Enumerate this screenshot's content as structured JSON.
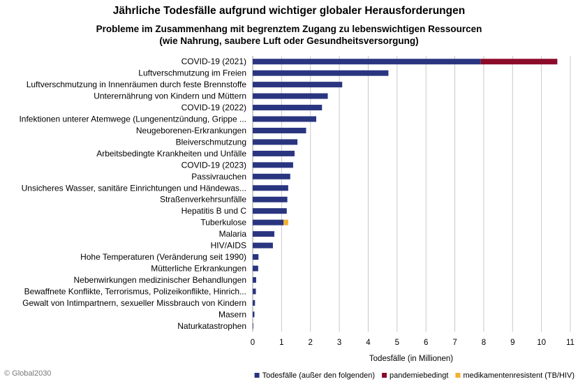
{
  "chart_data": {
    "type": "bar",
    "orientation": "horizontal",
    "stacked": true,
    "title": "Jährliche Todesfälle aufgrund wichtiger globaler Herausforderungen",
    "subtitle": [
      "Probleme im Zusammenhang mit begrenztem Zugang zu lebenswichtigen Ressourcen",
      "(wie Nahrung, saubere Luft oder Gesundheitsversorgung)"
    ],
    "xlabel": "Todesfälle (in Millionen)",
    "ylabel": "",
    "xlim": [
      0,
      11
    ],
    "xticks": [
      "0",
      "1",
      "2",
      "3",
      "4",
      "5",
      "6",
      "7",
      "8",
      "9",
      "10",
      "11"
    ],
    "grid": "vertical",
    "legend_position": "bottom-right",
    "categories": [
      "COVID-19 (2021)",
      "Luftverschmutzung im Freien",
      "Luftverschmutzung in Innenräumen durch feste Brennstoffe",
      "Unterernährung von Kindern und Müttern",
      "COVID-19 (2022)",
      "Infektionen unterer Atemwege (Lungenentzündung, Grippe ...",
      "Neugeborenen-Erkrankungen",
      "Bleiverschmutzung",
      "Arbeitsbedingte Krankheiten und Unfälle",
      "COVID-19 (2023)",
      "Passivrauchen",
      "Unsicheres Wasser, sanitäre Einrichtungen und Händewas...",
      "Straßenverkehrsunfälle",
      "Hepatitis B und C",
      "Tuberkulose",
      "Malaria",
      "HIV/AIDS",
      "Hohe Temperaturen (Veränderung seit 1990)",
      "Mütterliche Erkrankungen",
      "Nebenwirkungen medizinischer Behandlungen",
      "Bewaffnete Konflikte, Terrorismus, Polizeikonflikte, Hinrich...",
      "Gewalt von Intimpartnern, sexueller Missbrauch von Kindern",
      "Masern",
      "Naturkatastrophen"
    ],
    "series": [
      {
        "name": "Todesfälle (außer den folgenden)",
        "color": "#2a3580",
        "values": [
          7.9,
          4.7,
          3.1,
          2.6,
          2.4,
          2.2,
          1.85,
          1.55,
          1.45,
          1.4,
          1.3,
          1.23,
          1.2,
          1.18,
          1.07,
          0.75,
          0.7,
          0.2,
          0.19,
          0.12,
          0.11,
          0.08,
          0.06,
          0.02
        ]
      },
      {
        "name": "pandemiebedingt",
        "color": "#8b0a2a",
        "values": [
          2.65,
          0,
          0,
          0,
          0,
          0,
          0,
          0,
          0,
          0,
          0,
          0,
          0,
          0,
          0,
          0,
          0,
          0,
          0,
          0,
          0,
          0,
          0,
          0
        ]
      },
      {
        "name": "medikamentenresistent (TB/HIV)",
        "color": "#f2b134",
        "values": [
          0,
          0,
          0,
          0,
          0,
          0,
          0,
          0,
          0,
          0,
          0,
          0,
          0,
          0,
          0.16,
          0,
          0,
          0,
          0,
          0,
          0,
          0,
          0,
          0
        ]
      }
    ]
  },
  "footer": {
    "copyright": "© Global2030"
  }
}
